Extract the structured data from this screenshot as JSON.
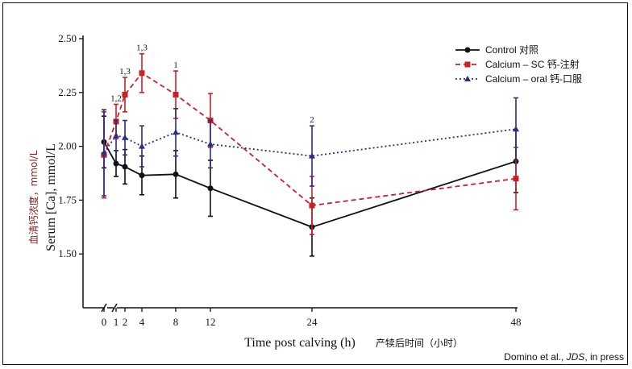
{
  "chart_data": {
    "type": "line",
    "ylabel_cn": "血清钙浓度，mmol/L",
    "ylabel": "Serum [Ca], mmol/L",
    "xlabel": "Time post calving (h)",
    "xlabel_cn": "产犊后时间（小时）",
    "citation": {
      "authors": "Domino et al., ",
      "journal": "JDS",
      "status": ", in press"
    },
    "ylim": [
      1.25,
      2.5
    ],
    "yticks": [
      "2.50",
      "2.25",
      "2.00",
      "1.75",
      "1.50"
    ],
    "xticks": [
      "0",
      "1",
      "2",
      "4",
      "8",
      "12",
      "24",
      "48"
    ],
    "series": [
      {
        "name": "Control 对照",
        "color": "#111111",
        "dash": "",
        "marker": "circle",
        "x": [
          0,
          1,
          2,
          4,
          8,
          12,
          24,
          48
        ],
        "y": [
          2.02,
          1.92,
          1.905,
          1.865,
          1.87,
          1.805,
          1.625,
          1.93
        ],
        "err": [
          0.12,
          0.06,
          0.08,
          0.09,
          0.11,
          0.13,
          0.135,
          0.145
        ]
      },
      {
        "name": "Calcium – SC 钙-注射",
        "color": "#cc2027",
        "dash": "6,4",
        "marker": "square",
        "x": [
          0,
          1,
          2,
          4,
          8,
          12,
          24,
          48
        ],
        "y": [
          1.96,
          2.115,
          2.24,
          2.34,
          2.24,
          2.12,
          1.725,
          1.85
        ],
        "err": [
          0.2,
          0.08,
          0.08,
          0.09,
          0.11,
          0.125,
          0.135,
          0.145
        ]
      },
      {
        "name": "Calcium – oral 钙-口服",
        "color": "#2b2d86",
        "dash": "2,3",
        "marker": "triangle",
        "x": [
          0,
          1,
          2,
          4,
          8,
          12,
          24,
          48
        ],
        "y": [
          1.97,
          2.05,
          2.04,
          2.0,
          2.065,
          2.01,
          1.955,
          2.08
        ],
        "err": [
          0.2,
          0.07,
          0.08,
          0.095,
          0.11,
          0.11,
          0.14,
          0.145
        ]
      }
    ],
    "annotations": [
      {
        "x": 1,
        "label": "1,2"
      },
      {
        "x": 2,
        "label": "1,3"
      },
      {
        "x": 4,
        "label": "1,3"
      },
      {
        "x": 8,
        "label": "1"
      },
      {
        "x": 24,
        "label": "2"
      }
    ]
  }
}
